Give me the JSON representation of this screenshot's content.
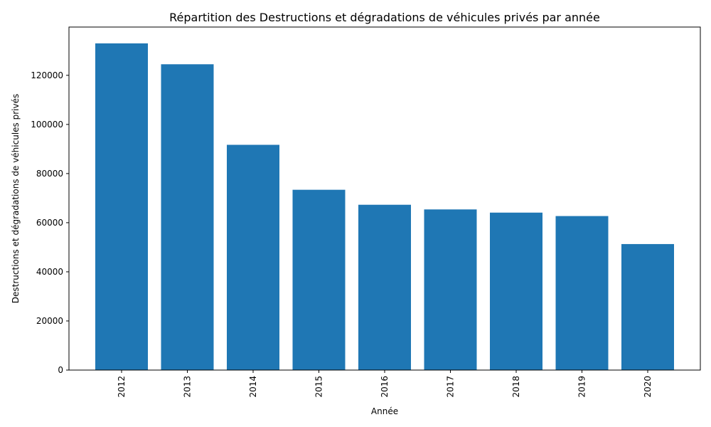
{
  "chart_data": {
    "type": "bar",
    "title": "Répartition des Destructions et dégradations de véhicules privés par année",
    "xlabel": "Année",
    "ylabel": "Destructions et dégradations de véhicules privés",
    "categories": [
      "2012",
      "2013",
      "2014",
      "2015",
      "2016",
      "2017",
      "2018",
      "2019",
      "2020"
    ],
    "values": [
      133000,
      124500,
      91700,
      73400,
      67300,
      65400,
      64100,
      62700,
      51300
    ],
    "ylim": [
      0,
      139650
    ],
    "yticks": [
      0,
      20000,
      40000,
      60000,
      80000,
      100000,
      120000
    ],
    "ytick_labels": [
      "0",
      "20000",
      "40000",
      "60000",
      "80000",
      "100000",
      "120000"
    ],
    "grid": false,
    "bar_color": "#1f77b4"
  }
}
